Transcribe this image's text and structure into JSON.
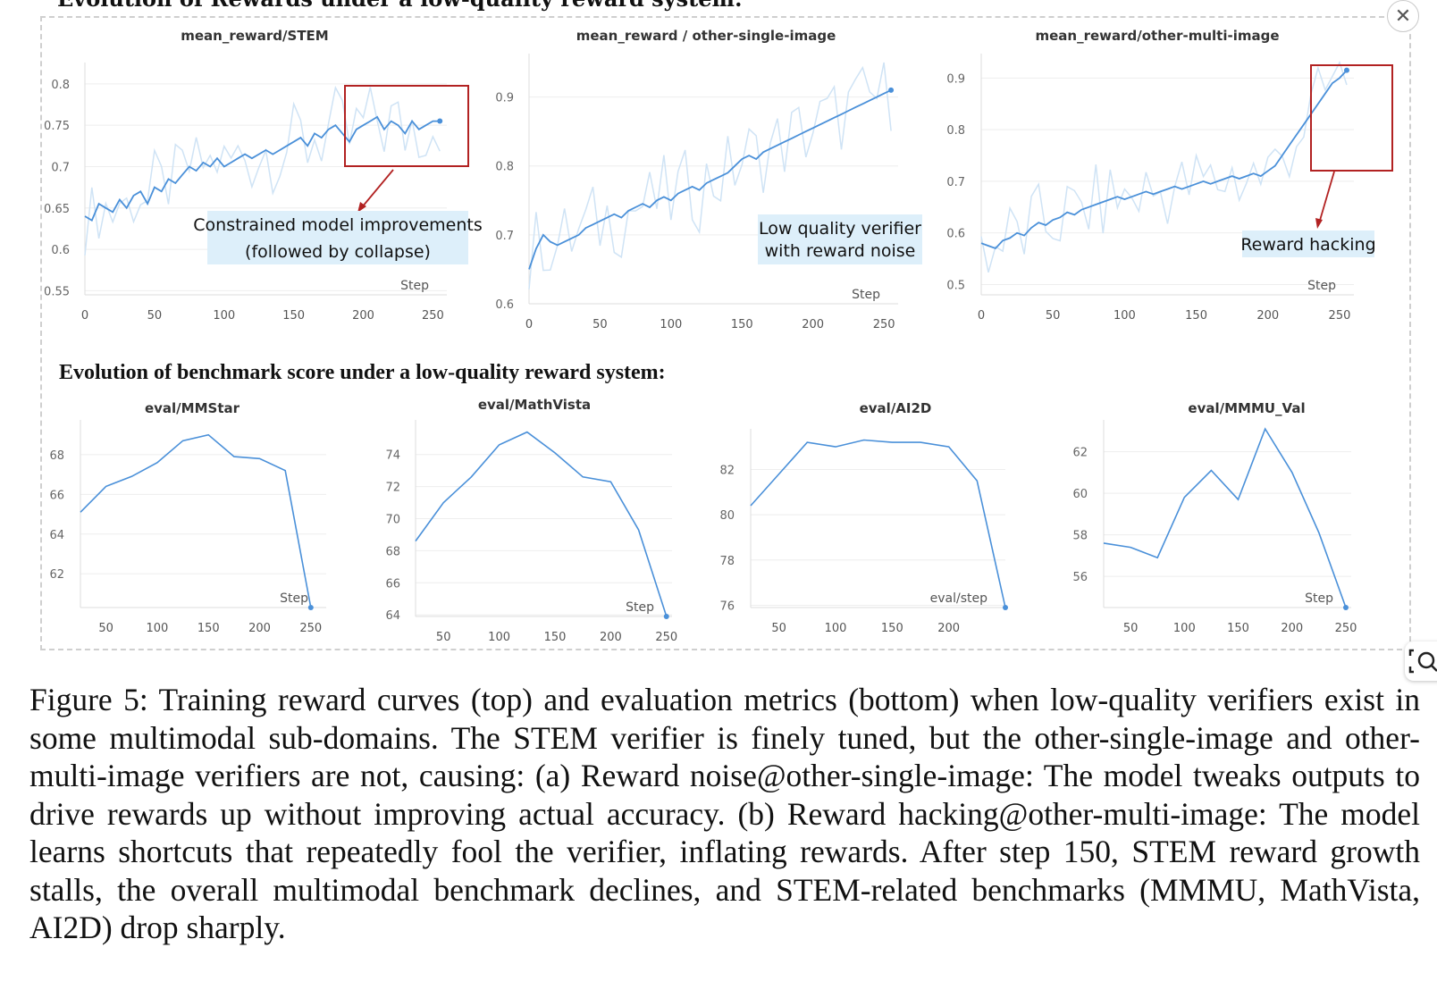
{
  "headings": {
    "top": "Evolution of Rewards under a low-quality reward system:",
    "bottom": "Evolution of benchmark score under a low-quality reward system:"
  },
  "caption": "Figure 5: Training reward curves (top) and evaluation metrics (bottom) when low-quality verifiers exist in some multimodal sub-domains. The STEM verifier is finely tuned, but the other-single-image and other-multi-image verifiers are not, causing: (a) Reward noise@other-single-image: The model tweaks outputs to drive rewards up without improving actual accuracy. (b) Reward hacking@other-multi-image: The model learns shortcuts that repeatedly fool the verifier, inflating rewards. After step 150, STEM reward growth stalls, the overall multimodal benchmark declines, and STEM-related benchmarks (MMMU, MathVista, AI2D) drop sharply.",
  "controls": {
    "close_icon": "close-icon",
    "zoom_icon": "zoom-search-icon"
  },
  "colors": {
    "line": "#4a90d9",
    "line_light": "#cfe3f5",
    "annotation_box": "#b22222",
    "annotation_bg": "#ddeffa"
  },
  "chart_data": [
    {
      "type": "line",
      "title": "mean_reward/STEM",
      "xlabel": "Step",
      "xticks": [
        0,
        50,
        100,
        150,
        200,
        250
      ],
      "yticks": [
        "0.55",
        "0.6",
        "0.65",
        "0.7",
        "0.75",
        "0.8"
      ],
      "xlim": [
        0,
        260
      ],
      "ylim": [
        0.545,
        0.815
      ],
      "grid": true,
      "series": [
        {
          "x": [
            0,
            5,
            10,
            15,
            20,
            25,
            30,
            35,
            40,
            45,
            50,
            55,
            60,
            65,
            70,
            75,
            80,
            85,
            90,
            95,
            100,
            105,
            110,
            115,
            120,
            125,
            130,
            135,
            140,
            145,
            150,
            155,
            160,
            165,
            170,
            175,
            180,
            185,
            190,
            195,
            200,
            205,
            210,
            215,
            220,
            225,
            230,
            235,
            240,
            245,
            250,
            255
          ],
          "y": [
            0.64,
            0.635,
            0.655,
            0.65,
            0.645,
            0.66,
            0.65,
            0.665,
            0.67,
            0.655,
            0.675,
            0.67,
            0.685,
            0.68,
            0.69,
            0.7,
            0.695,
            0.705,
            0.7,
            0.71,
            0.7,
            0.705,
            0.71,
            0.715,
            0.71,
            0.715,
            0.72,
            0.715,
            0.72,
            0.725,
            0.73,
            0.735,
            0.725,
            0.74,
            0.735,
            0.745,
            0.75,
            0.74,
            0.73,
            0.745,
            0.75,
            0.755,
            0.76,
            0.745,
            0.755,
            0.75,
            0.74,
            0.755,
            0.745,
            0.75,
            0.755,
            0.755
          ]
        }
      ],
      "annotation": {
        "text_lines": [
          "Constrained model improvements",
          "(followed by collapse)"
        ],
        "box_x": [
          180,
          255
        ],
        "box_y": [
          0.71,
          0.805
        ]
      }
    },
    {
      "type": "line",
      "title": "mean_reward / other-single-image",
      "xlabel": "Step",
      "xticks": [
        0,
        50,
        100,
        150,
        200,
        250
      ],
      "yticks": [
        "0.6",
        "0.7",
        "0.8",
        "0.9"
      ],
      "xlim": [
        0,
        260
      ],
      "ylim": [
        0.6,
        0.95
      ],
      "grid": true,
      "series": [
        {
          "x": [
            0,
            5,
            10,
            15,
            20,
            25,
            30,
            35,
            40,
            45,
            50,
            55,
            60,
            65,
            70,
            75,
            80,
            85,
            90,
            95,
            100,
            105,
            110,
            115,
            120,
            125,
            130,
            135,
            140,
            145,
            150,
            155,
            160,
            165,
            170,
            175,
            180,
            185,
            190,
            195,
            200,
            205,
            210,
            215,
            220,
            225,
            230,
            235,
            240,
            245,
            250,
            255
          ],
          "y": [
            0.65,
            0.68,
            0.7,
            0.69,
            0.685,
            0.69,
            0.695,
            0.7,
            0.71,
            0.715,
            0.72,
            0.725,
            0.73,
            0.725,
            0.735,
            0.74,
            0.745,
            0.74,
            0.75,
            0.755,
            0.75,
            0.76,
            0.765,
            0.77,
            0.765,
            0.775,
            0.78,
            0.785,
            0.79,
            0.8,
            0.81,
            0.815,
            0.81,
            0.82,
            0.825,
            0.83,
            0.835,
            0.84,
            0.845,
            0.85,
            0.855,
            0.86,
            0.865,
            0.87,
            0.875,
            0.88,
            0.885,
            0.89,
            0.895,
            0.9,
            0.905,
            0.91
          ]
        }
      ],
      "annotation": {
        "text_lines": [
          "Low quality verifier",
          "with reward noise"
        ]
      }
    },
    {
      "type": "line",
      "title": "mean_reward/other-multi-image",
      "xlabel": "Step",
      "xticks": [
        0,
        50,
        100,
        150,
        200,
        250
      ],
      "yticks": [
        "0.5",
        "0.6",
        "0.7",
        "0.8",
        "0.9"
      ],
      "xlim": [
        0,
        260
      ],
      "ylim": [
        0.48,
        0.93
      ],
      "grid": true,
      "series": [
        {
          "x": [
            0,
            5,
            10,
            15,
            20,
            25,
            30,
            35,
            40,
            45,
            50,
            55,
            60,
            65,
            70,
            75,
            80,
            85,
            90,
            95,
            100,
            105,
            110,
            115,
            120,
            125,
            130,
            135,
            140,
            145,
            150,
            155,
            160,
            165,
            170,
            175,
            180,
            185,
            190,
            195,
            200,
            205,
            210,
            215,
            220,
            225,
            230,
            235,
            240,
            245,
            250,
            255
          ],
          "y": [
            0.58,
            0.575,
            0.57,
            0.585,
            0.59,
            0.6,
            0.595,
            0.61,
            0.62,
            0.615,
            0.625,
            0.63,
            0.64,
            0.635,
            0.645,
            0.65,
            0.655,
            0.66,
            0.665,
            0.67,
            0.665,
            0.67,
            0.675,
            0.68,
            0.675,
            0.68,
            0.685,
            0.69,
            0.685,
            0.69,
            0.695,
            0.7,
            0.695,
            0.7,
            0.705,
            0.71,
            0.705,
            0.71,
            0.715,
            0.71,
            0.72,
            0.73,
            0.75,
            0.77,
            0.79,
            0.81,
            0.83,
            0.85,
            0.87,
            0.89,
            0.9,
            0.915
          ]
        }
      ],
      "annotation": {
        "text_lines": [
          "Reward hacking"
        ],
        "box_x": [
          210,
          265
        ],
        "box_y": [
          0.73,
          0.92
        ]
      }
    },
    {
      "type": "line",
      "title": "eval/MMStar",
      "xlabel": "Step",
      "xticks": [
        50,
        100,
        150,
        200,
        250
      ],
      "yticks": [
        "62",
        "64",
        "66",
        "68"
      ],
      "xlim": [
        25,
        265
      ],
      "ylim": [
        60.3,
        69.3
      ],
      "grid": true,
      "series": [
        {
          "x": [
            25,
            50,
            75,
            100,
            125,
            150,
            175,
            200,
            225,
            250
          ],
          "y": [
            65.1,
            66.4,
            66.9,
            67.6,
            68.7,
            69.0,
            67.9,
            67.8,
            67.2,
            60.3
          ]
        }
      ]
    },
    {
      "type": "line",
      "title": "eval/MathVista",
      "xlabel": "Step",
      "xticks": [
        50,
        100,
        150,
        200,
        250
      ],
      "yticks": [
        "64",
        "66",
        "68",
        "70",
        "72",
        "74"
      ],
      "xlim": [
        25,
        255
      ],
      "ylim": [
        63.9,
        75.6
      ],
      "grid": true,
      "series": [
        {
          "x": [
            25,
            50,
            75,
            100,
            125,
            150,
            175,
            200,
            225,
            250
          ],
          "y": [
            68.6,
            71.0,
            72.6,
            74.6,
            75.4,
            74.1,
            72.6,
            72.3,
            69.3,
            63.9
          ]
        }
      ]
    },
    {
      "type": "line",
      "title": "eval/AI2D",
      "xlabel": "eval/step",
      "xticks": [
        50,
        100,
        150,
        200
      ],
      "yticks": [
        "76",
        "78",
        "80",
        "82"
      ],
      "xlim": [
        25,
        250
      ],
      "ylim": [
        75.9,
        83.4
      ],
      "grid": true,
      "series": [
        {
          "x": [
            25,
            50,
            75,
            100,
            125,
            150,
            175,
            200,
            225,
            250
          ],
          "y": [
            80.4,
            81.8,
            83.2,
            83.0,
            83.3,
            83.2,
            83.2,
            83.0,
            81.5,
            75.9
          ]
        }
      ]
    },
    {
      "type": "line",
      "title": "eval/MMMU_Val",
      "xlabel": "Step",
      "xticks": [
        50,
        100,
        150,
        200,
        250
      ],
      "yticks": [
        "56",
        "58",
        "60",
        "62"
      ],
      "xlim": [
        25,
        255
      ],
      "ylim": [
        54.5,
        63.1
      ],
      "grid": true,
      "series": [
        {
          "x": [
            25,
            50,
            75,
            100,
            125,
            150,
            175,
            200,
            225,
            250
          ],
          "y": [
            57.6,
            57.4,
            56.9,
            59.8,
            61.1,
            59.7,
            63.1,
            61.0,
            58.1,
            54.5
          ]
        }
      ]
    }
  ]
}
